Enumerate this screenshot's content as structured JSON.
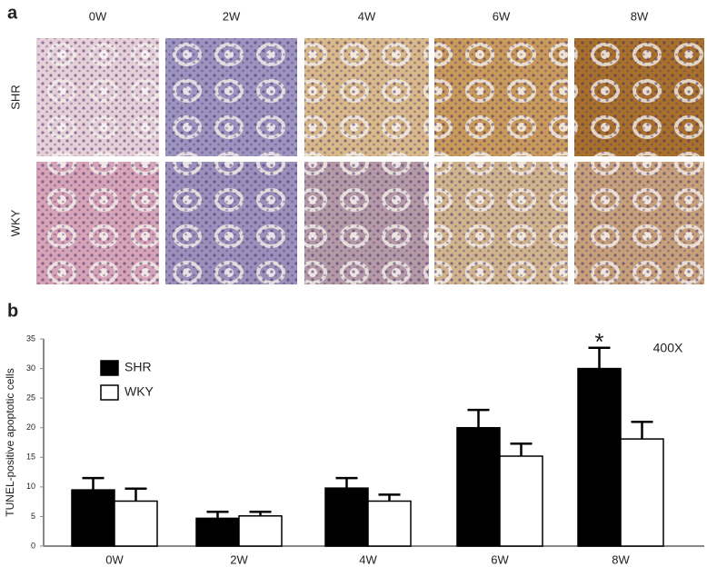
{
  "panel_a": {
    "label": "a",
    "columns": [
      "0W",
      "2W",
      "4W",
      "6W",
      "8W"
    ],
    "rows": [
      "SHR",
      "WKY"
    ]
  },
  "panel_b_label": "b",
  "chart_data": {
    "type": "bar",
    "ylabel": "TUNEL-positive  apoptotic cells",
    "annotations": [
      "400X",
      "*"
    ],
    "categories": [
      "0W",
      "2W",
      "4W",
      "6W",
      "8W"
    ],
    "series": [
      {
        "name": "SHR",
        "color": "#000000",
        "values": [
          9.5,
          4.7,
          9.8,
          20,
          30
        ],
        "errors": [
          2,
          1.1,
          1.7,
          3,
          3.5
        ]
      },
      {
        "name": "WKY",
        "color": "#ffffff",
        "values": [
          7.6,
          5.1,
          7.6,
          15.2,
          18.1
        ],
        "errors": [
          2.1,
          0.7,
          1.1,
          2.1,
          2.9
        ]
      }
    ],
    "ylim": [
      0,
      35
    ],
    "yticks": [
      0,
      5,
      10,
      15,
      20,
      25,
      30,
      35
    ],
    "grid": false
  }
}
